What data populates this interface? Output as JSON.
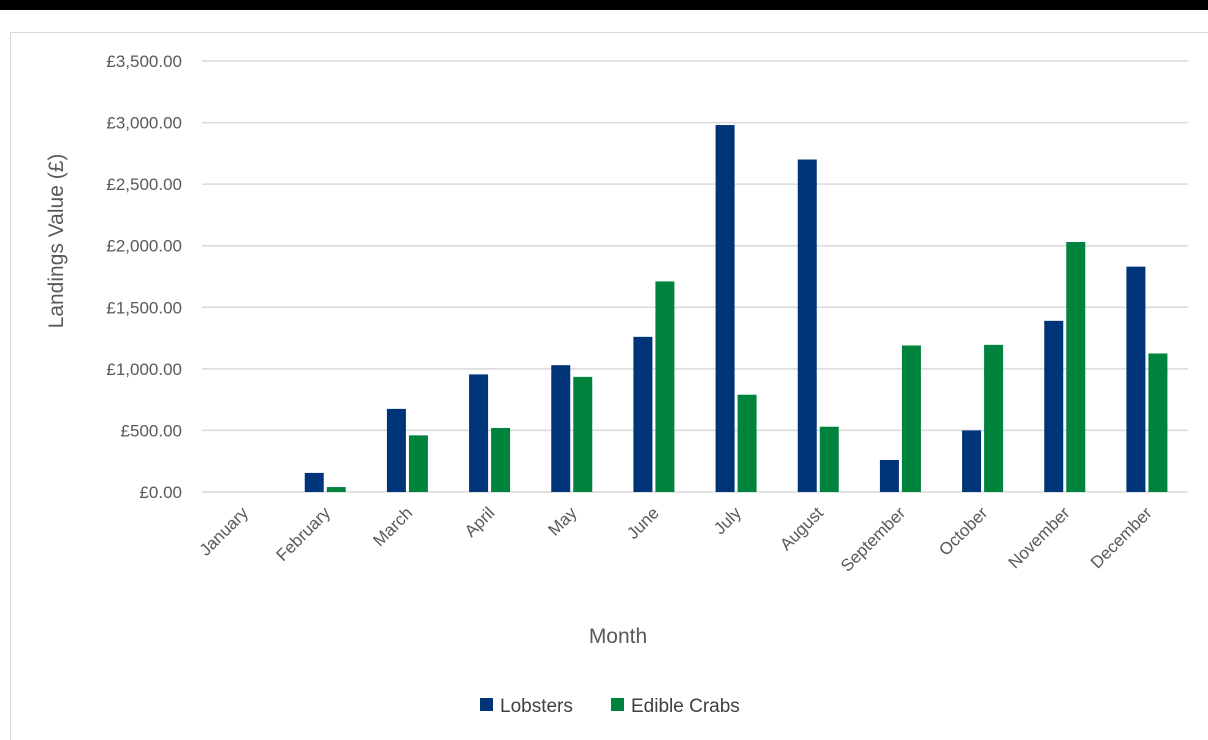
{
  "chart_data": {
    "type": "bar",
    "title": "",
    "xlabel": "Month",
    "ylabel": "Landings Value (£)",
    "ylim": [
      0,
      3500
    ],
    "ytick_step": 500,
    "ytick_labels": [
      "£0.00",
      "£500.00",
      "£1,000.00",
      "£1,500.00",
      "£2,000.00",
      "£2,500.00",
      "£3,000.00",
      "£3,500.00"
    ],
    "grid": true,
    "legend_position": "bottom",
    "categories": [
      "January",
      "February",
      "March",
      "April",
      "May",
      "June",
      "July",
      "August",
      "September",
      "October",
      "November",
      "December"
    ],
    "series": [
      {
        "name": "Lobsters",
        "color": "#003478",
        "values": [
          0,
          155,
          675,
          955,
          1030,
          1260,
          2980,
          2700,
          260,
          500,
          1390,
          1830
        ]
      },
      {
        "name": "Edible Crabs",
        "color": "#00843d",
        "values": [
          0,
          40,
          460,
          520,
          935,
          1710,
          790,
          530,
          1190,
          1195,
          2030,
          1125
        ]
      }
    ]
  }
}
